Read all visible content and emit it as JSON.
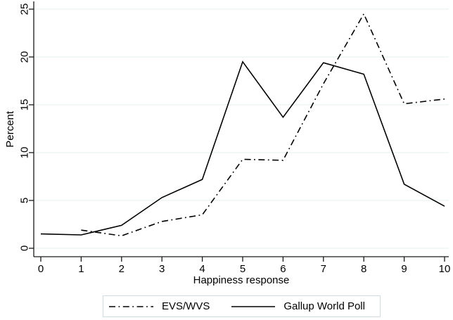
{
  "figure": {
    "background_color": "#ffffff",
    "line_color": "#000000",
    "grid_color": "#e6f0f2",
    "axis_color": "#1a1a1a",
    "text_color": "#000000",
    "legend_border_color": "#ccdce1"
  },
  "chart_data": {
    "type": "line",
    "title": "",
    "xlabel": "Happiness response",
    "ylabel": "Percent",
    "xlim": [
      0,
      10
    ],
    "ylim": [
      0,
      25
    ],
    "x_ticks": [
      0,
      1,
      2,
      3,
      4,
      5,
      6,
      7,
      8,
      9,
      10
    ],
    "y_ticks": [
      0,
      5,
      10,
      15,
      20,
      25
    ],
    "grid": "horizontal-only",
    "legend_position": "bottom-center",
    "series": [
      {
        "name": "EVS/WVS",
        "style": "dash-dot",
        "color": "#000000",
        "x": [
          1,
          2,
          3,
          4,
          5,
          6,
          7,
          8,
          9,
          10
        ],
        "y": [
          1.9,
          1.3,
          2.8,
          3.5,
          9.3,
          9.2,
          17.2,
          24.5,
          15.1,
          15.6
        ]
      },
      {
        "name": "Gallup World Poll",
        "style": "solid",
        "color": "#000000",
        "x": [
          0,
          1,
          2,
          3,
          4,
          5,
          6,
          7,
          8,
          9,
          10
        ],
        "y": [
          1.5,
          1.4,
          2.4,
          5.3,
          7.2,
          19.5,
          13.7,
          19.4,
          18.2,
          6.7,
          4.4
        ]
      }
    ]
  }
}
